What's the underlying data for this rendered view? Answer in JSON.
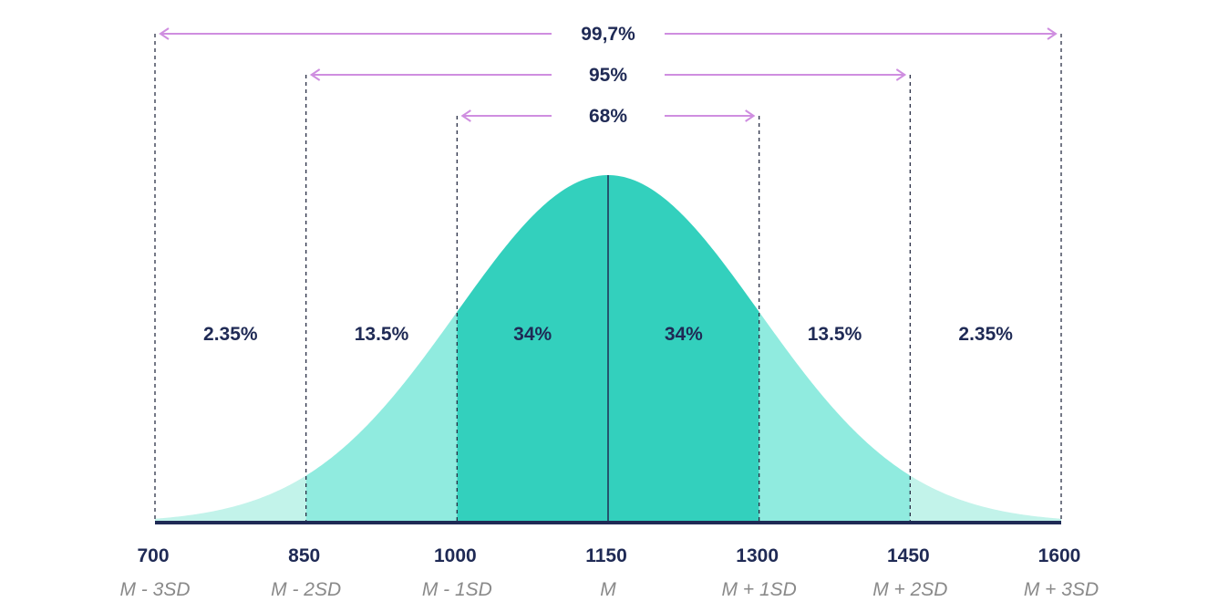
{
  "chart_data": {
    "type": "area",
    "title": "",
    "mean": 1150,
    "sd": 150,
    "xlim": [
      700,
      1600
    ],
    "ticks": [
      {
        "value": 700,
        "label": "700",
        "sublabel": "M - 3SD"
      },
      {
        "value": 850,
        "label": "850",
        "sublabel": "M - 2SD"
      },
      {
        "value": 1000,
        "label": "1000",
        "sublabel": "M - 1SD"
      },
      {
        "value": 1150,
        "label": "1150",
        "sublabel": "M"
      },
      {
        "value": 1300,
        "label": "1300",
        "sublabel": "M + 1SD"
      },
      {
        "value": 1450,
        "label": "1450",
        "sublabel": "M + 2SD"
      },
      {
        "value": 1600,
        "label": "1600",
        "sublabel": "M + 3SD"
      }
    ],
    "regions": [
      {
        "from": 700,
        "to": 850,
        "label": "2.35%",
        "color": "#c2f3ea"
      },
      {
        "from": 850,
        "to": 1000,
        "label": "13.5%",
        "color": "#90ebdf"
      },
      {
        "from": 1000,
        "to": 1150,
        "label": "34%",
        "color": "#33d0bd"
      },
      {
        "from": 1150,
        "to": 1300,
        "label": "34%",
        "color": "#33d0bd"
      },
      {
        "from": 1300,
        "to": 1450,
        "label": "13.5%",
        "color": "#90ebdf"
      },
      {
        "from": 1450,
        "to": 1600,
        "label": "2.35%",
        "color": "#c2f3ea"
      }
    ],
    "ranges": [
      {
        "from": 700,
        "to": 1600,
        "label": "99,7%"
      },
      {
        "from": 850,
        "to": 1450,
        "label": "95%"
      },
      {
        "from": 1000,
        "to": 1300,
        "label": "68%"
      }
    ],
    "colors": {
      "axis": "#1f2a55",
      "arrow": "#cf8ee0",
      "text": "#1f2a55",
      "sublabel": "#8a8a8a"
    }
  }
}
